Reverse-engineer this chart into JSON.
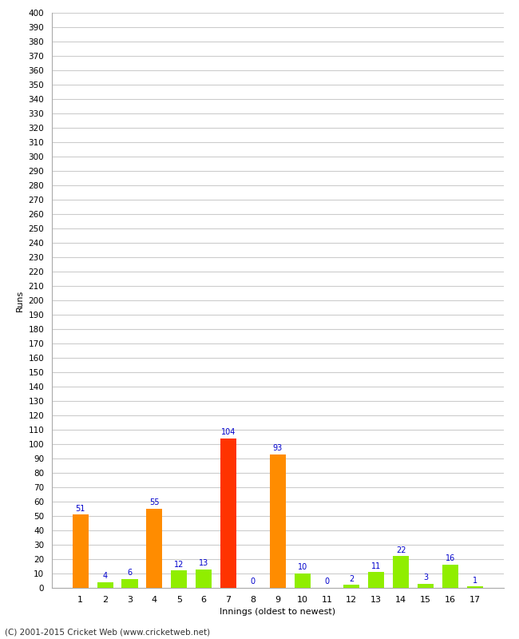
{
  "title": "",
  "xlabel": "Innings (oldest to newest)",
  "ylabel": "Runs",
  "innings": [
    1,
    2,
    3,
    4,
    5,
    6,
    7,
    8,
    9,
    10,
    11,
    12,
    13,
    14,
    15,
    16,
    17
  ],
  "values": [
    51,
    4,
    6,
    55,
    12,
    13,
    104,
    0,
    93,
    10,
    0,
    2,
    11,
    22,
    3,
    16,
    1
  ],
  "colors": [
    "#FF8C00",
    "#90EE00",
    "#90EE00",
    "#FF8C00",
    "#90EE00",
    "#90EE00",
    "#FF3300",
    "#90EE00",
    "#FF8C00",
    "#90EE00",
    "#90EE00",
    "#90EE00",
    "#90EE00",
    "#90EE00",
    "#90EE00",
    "#90EE00",
    "#90EE00"
  ],
  "ylim": [
    0,
    400
  ],
  "yticks": [
    0,
    10,
    20,
    30,
    40,
    50,
    60,
    70,
    80,
    90,
    100,
    110,
    120,
    130,
    140,
    150,
    160,
    170,
    180,
    190,
    200,
    210,
    220,
    230,
    240,
    250,
    260,
    270,
    280,
    290,
    300,
    310,
    320,
    330,
    340,
    350,
    360,
    370,
    380,
    390,
    400
  ],
  "background_color": "#ffffff",
  "grid_color": "#cccccc",
  "label_color": "#0000cc",
  "footer": "(C) 2001-2015 Cricket Web (www.cricketweb.net)",
  "bar_width": 0.65
}
